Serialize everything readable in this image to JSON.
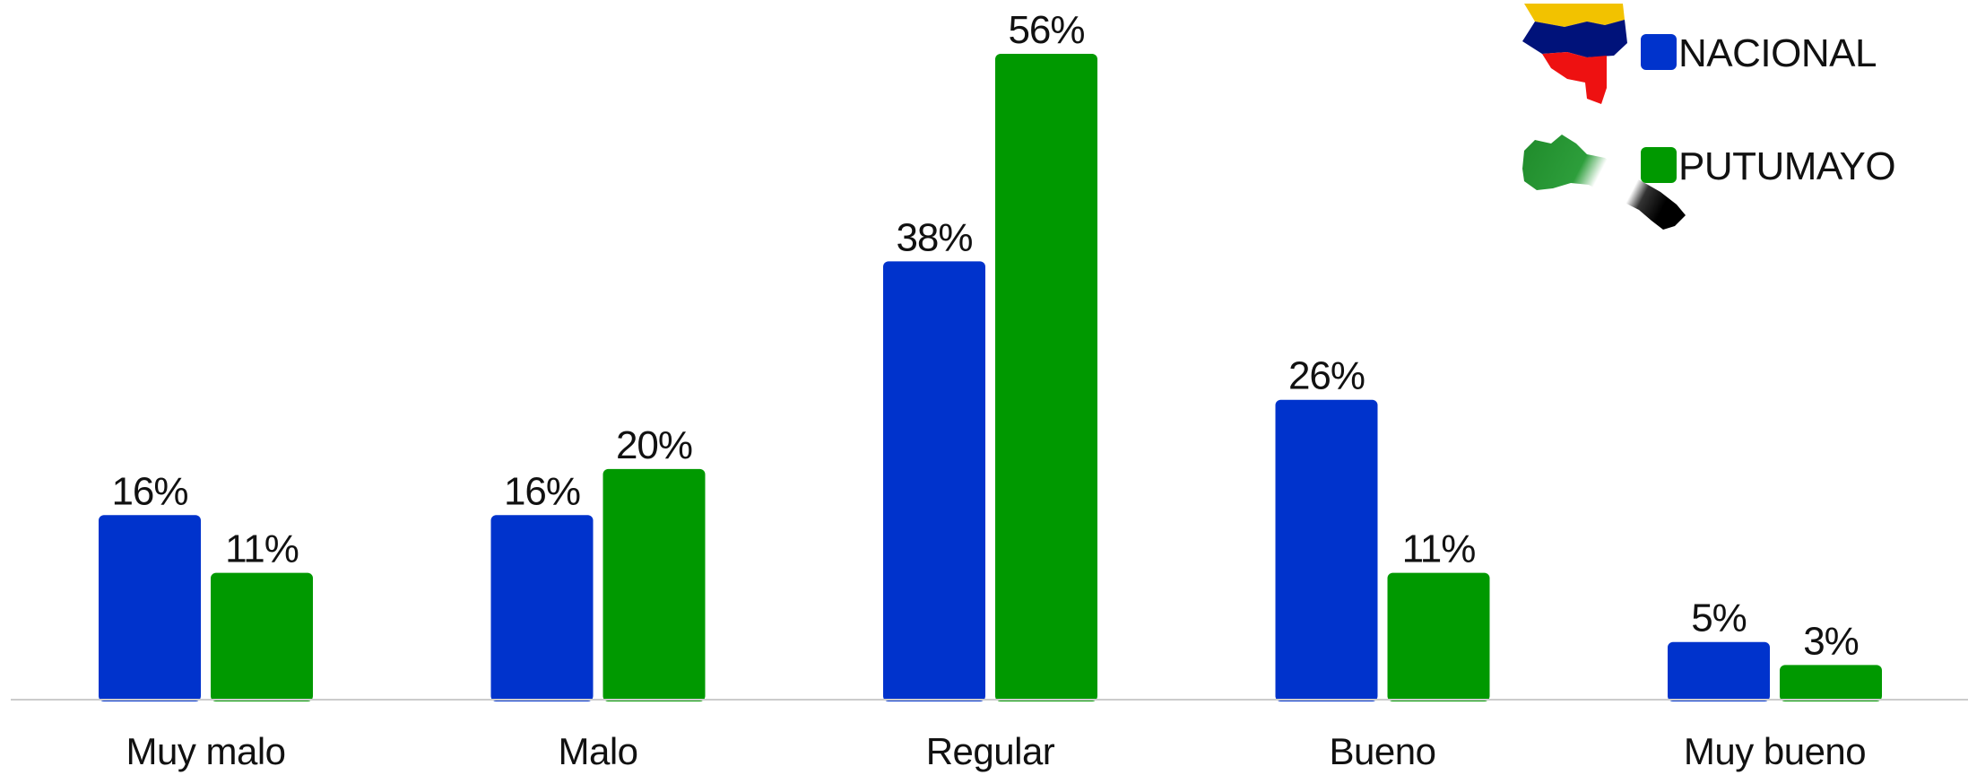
{
  "chart_data": {
    "type": "bar",
    "categories": [
      "Muy malo",
      "Malo",
      "Regular",
      "Bueno",
      "Muy bueno"
    ],
    "series": [
      {
        "name": "NACIONAL",
        "values": [
          16,
          16,
          38,
          26,
          5
        ],
        "labels": [
          "16%",
          "16%",
          "38%",
          "26%",
          "5%"
        ],
        "color": "#0033cc"
      },
      {
        "name": "PUTUMAYO",
        "values": [
          11,
          20,
          56,
          11,
          3
        ],
        "labels": [
          "11%",
          "20%",
          "56%",
          "11%",
          "3%"
        ],
        "color": "#009900"
      }
    ],
    "ylim": [
      0,
      56
    ],
    "grid": false,
    "legend_position": "top-right",
    "legend_icons": [
      "colombia-map-icon",
      "putumayo-map-icon"
    ],
    "colors": {
      "baseline": "#cccccc",
      "colombia_yellow": "#f2c200",
      "colombia_blue": "#00127a",
      "colombia_red": "#ee1111",
      "putumayo_green": "#1a8f2a",
      "putumayo_black": "#111111"
    }
  }
}
